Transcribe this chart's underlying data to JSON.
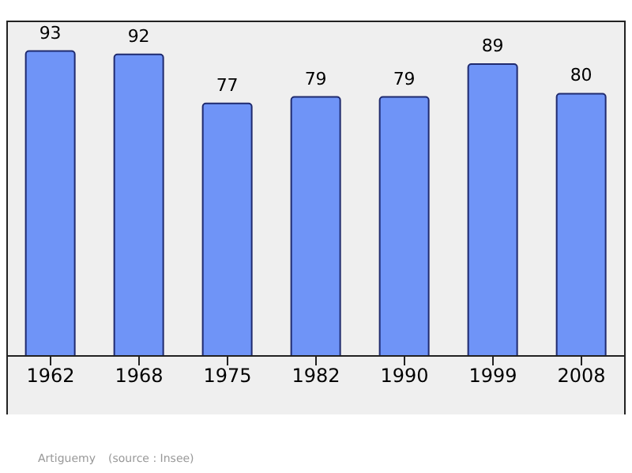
{
  "chart_data": {
    "type": "bar",
    "categories": [
      "1962",
      "1968",
      "1975",
      "1982",
      "1990",
      "1999",
      "2008"
    ],
    "values": [
      93,
      92,
      77,
      79,
      79,
      89,
      80
    ],
    "color": "#6f94f7",
    "data_labels": true,
    "annotations": [
      "Artiguemy",
      "(source : Insee)"
    ]
  }
}
